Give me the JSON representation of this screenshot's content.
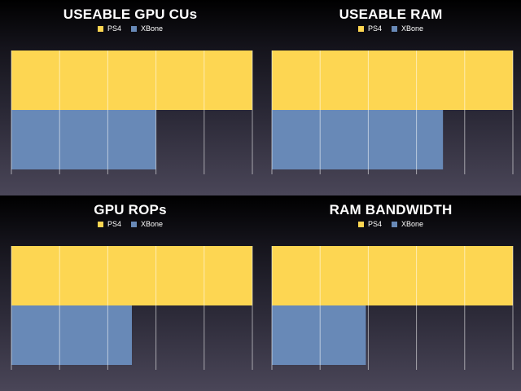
{
  "colors": {
    "ps4": "#fdd652",
    "xbone": "#6889b7",
    "grid": "#ffffff"
  },
  "chart_data": [
    {
      "type": "bar",
      "orientation": "horizontal",
      "title": "USEABLE GPU CUs",
      "legend_position": "top-center",
      "series": [
        {
          "name": "PS4",
          "values": [
            1.0
          ]
        },
        {
          "name": "XBone",
          "values": [
            0.6
          ]
        }
      ],
      "xlim": [
        0,
        1
      ],
      "grid": true,
      "grid_lines": 5
    },
    {
      "type": "bar",
      "orientation": "horizontal",
      "title": "USEABLE RAM",
      "legend_position": "top-center",
      "series": [
        {
          "name": "PS4",
          "values": [
            1.0
          ]
        },
        {
          "name": "XBone",
          "values": [
            0.71
          ]
        }
      ],
      "xlim": [
        0,
        1
      ],
      "grid": true,
      "grid_lines": 5
    },
    {
      "type": "bar",
      "orientation": "horizontal",
      "title": "GPU ROPs",
      "legend_position": "top-center",
      "series": [
        {
          "name": "PS4",
          "values": [
            1.0
          ]
        },
        {
          "name": "XBone",
          "values": [
            0.5
          ]
        }
      ],
      "xlim": [
        0,
        1
      ],
      "grid": true,
      "grid_lines": 5
    },
    {
      "type": "bar",
      "orientation": "horizontal",
      "title": "RAM BANDWIDTH",
      "legend_position": "top-center",
      "series": [
        {
          "name": "PS4",
          "values": [
            1.0
          ]
        },
        {
          "name": "XBone",
          "values": [
            0.39
          ]
        }
      ],
      "xlim": [
        0,
        1
      ],
      "grid": true,
      "grid_lines": 5
    }
  ]
}
